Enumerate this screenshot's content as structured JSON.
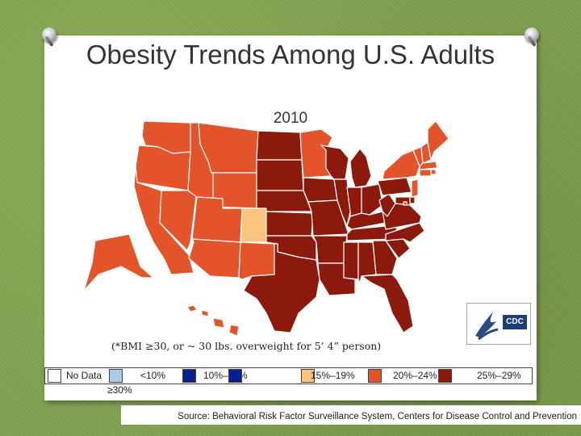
{
  "title": "Obesity Trends Among U.S. Adults",
  "year": "2010",
  "footnote": "(*BMI ≥30, or ~ 30 lbs. overweight for 5’ 4” person)",
  "logo": {
    "text": "CDC",
    "icon": "hhs-eagle-icon"
  },
  "legend": [
    {
      "label": "No Data",
      "color": "#ffffff"
    },
    {
      "label": "<10%",
      "color": "#a9cbe8"
    },
    {
      "label": "10%–14%",
      "color": "#0a1f8f"
    },
    {
      "label": "15%–19%",
      "color": "#ffd08c"
    },
    {
      "label": "20%–24%",
      "color": "#e8522a"
    },
    {
      "label": "25%–29%",
      "color": "#8a1a0c"
    },
    {
      "label": "≥30%",
      "color": "#8a1a0c"
    }
  ],
  "source": "Source: Behavioral Risk Factor Surveillance System, Centers for Disease Control and Prevention",
  "colors": {
    "c15_19": "#fcc47e",
    "c20_24": "#e4542b",
    "c25_29": "#8b1a0c",
    "c30": "#8b1a0c"
  },
  "map_data": {
    "category_by_state": {
      "WA": "20-24",
      "OR": "20-24",
      "CA": "20-24",
      "NV": "20-24",
      "ID": "20-24",
      "MT": "20-24",
      "WY": "20-24",
      "UT": "20-24",
      "CO": "15-19",
      "AZ": "20-24",
      "NM": "20-24",
      "ND": "25-29",
      "SD": "25-29",
      "NE": "25-29",
      "KS": "25-29",
      "OK": "30+",
      "TX": "30+",
      "MN": "20-24",
      "IA": "25-29",
      "MO": "30+",
      "AR": "30+",
      "LA": "30+",
      "WI": "25-29",
      "IL": "25-29",
      "MI": "30+",
      "IN": "25-29",
      "OH": "25-29",
      "KY": "30+",
      "TN": "30+",
      "MS": "30+",
      "AL": "30+",
      "GA": "25-29",
      "FL": "25-29",
      "SC": "30+",
      "NC": "25-29",
      "VA": "25-29",
      "WV": "30+",
      "PA": "25-29",
      "NY": "20-24",
      "VT": "20-24",
      "NH": "20-24",
      "ME": "20-24",
      "MA": "20-24",
      "RI": "20-24",
      "CT": "20-24",
      "NJ": "20-24",
      "DE": "25-29",
      "MD": "25-29",
      "DC": "20-24",
      "AK": "20-24",
      "HI": "20-24"
    }
  }
}
